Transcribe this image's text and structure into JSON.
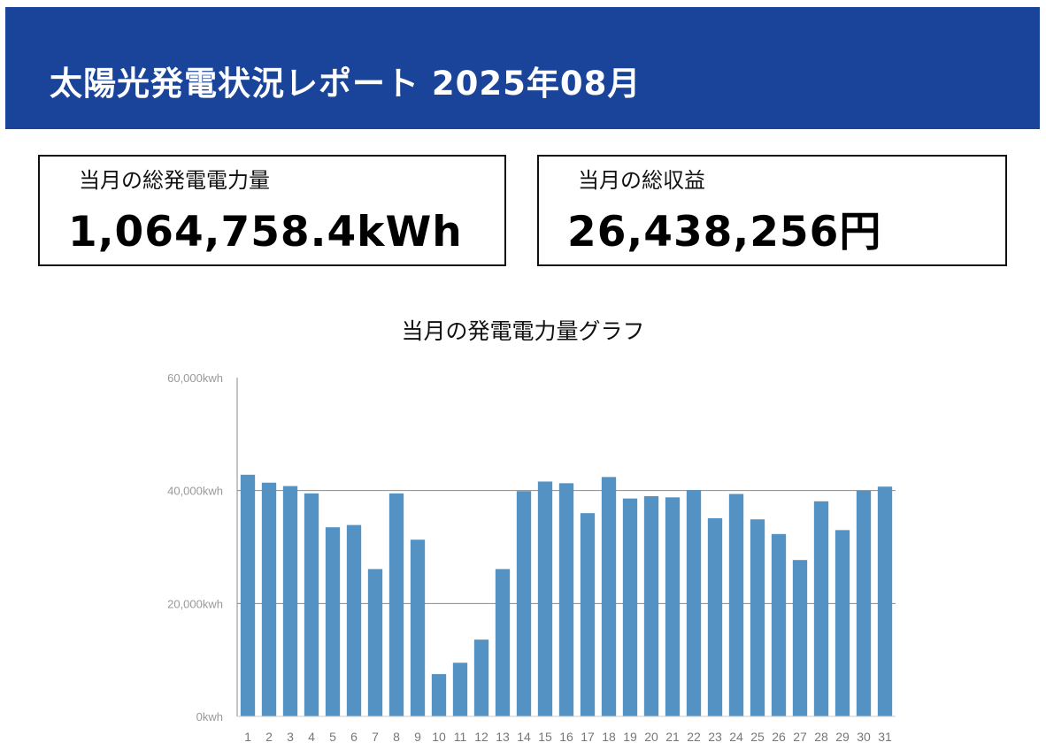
{
  "header": {
    "title": "太陽光発電状況レポート 2025年08月",
    "background": "#1a439a"
  },
  "summary": {
    "energy": {
      "label": "当月の総発電電力量",
      "value": "1,064,758.4kWh"
    },
    "revenue": {
      "label": "当月の総収益",
      "value": "26,438,256円"
    }
  },
  "chart_data": {
    "type": "bar",
    "title": "当月の発電電力量グラフ",
    "xlabel": "",
    "ylabel": "",
    "ylim": [
      0,
      60000
    ],
    "y_ticks": [
      {
        "value": 0,
        "label": "0kwh"
      },
      {
        "value": 20000,
        "label": "20,000kwh"
      },
      {
        "value": 40000,
        "label": "40,000kwh"
      },
      {
        "value": 60000,
        "label": "60,000kwh"
      }
    ],
    "gridlines": [
      20000,
      40000
    ],
    "bar_color": "#5592c4",
    "categories": [
      "1",
      "2",
      "3",
      "4",
      "5",
      "6",
      "7",
      "8",
      "9",
      "10",
      "11",
      "12",
      "13",
      "14",
      "15",
      "16",
      "17",
      "18",
      "19",
      "20",
      "21",
      "22",
      "23",
      "24",
      "25",
      "26",
      "27",
      "28",
      "29",
      "30",
      "31"
    ],
    "values": [
      42800,
      41400,
      40800,
      39500,
      33500,
      33900,
      26100,
      39500,
      31300,
      7500,
      9500,
      13600,
      26100,
      39900,
      41600,
      41300,
      36000,
      42400,
      38600,
      39000,
      38800,
      40100,
      35100,
      39400,
      34900,
      32300,
      27700,
      38100,
      33000,
      40000,
      40700
    ]
  }
}
